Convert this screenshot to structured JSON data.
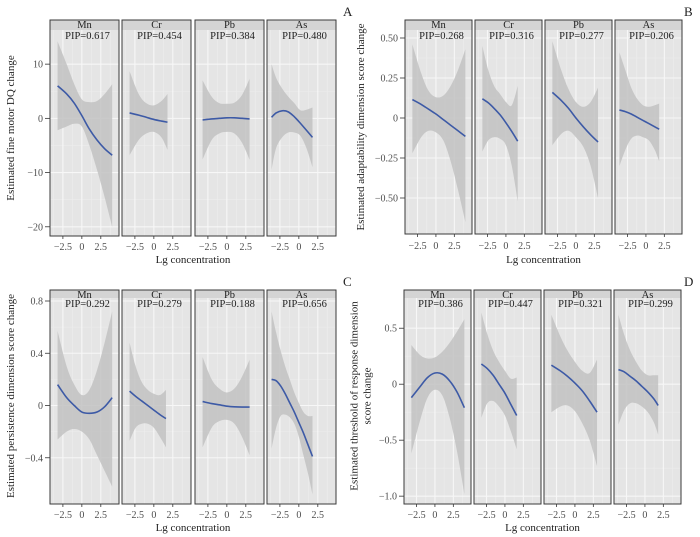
{
  "chart_data": [
    {
      "id": "A",
      "type": "line",
      "panel_label": "A",
      "ylabel": "Estimated fine motor DQ change",
      "ylabel_lines": [
        "Estimated fine motor DQ change"
      ],
      "xlabel": "Lg concentration",
      "ylim": [
        -21.7,
        16.3
      ],
      "yticks": [
        10,
        0,
        -10,
        -20
      ],
      "ytick_labels": [
        "10",
        "0",
        "−10",
        "−20"
      ],
      "xlim": [
        -4.2,
        4.9
      ],
      "xticks": [
        -2.5,
        0,
        2.5
      ],
      "xtick_labels": [
        "−2.5",
        "0",
        "2.5"
      ],
      "grid": true,
      "facets": [
        {
          "metal": "Mn",
          "pip": "PIP=0.617",
          "x": [
            -3.2,
            -2.0,
            -1.0,
            0.0,
            1.0,
            2.0,
            3.0,
            4.0
          ],
          "y": [
            6.0,
            4.5,
            2.8,
            0.5,
            -2.0,
            -4.0,
            -5.6,
            -6.8
          ],
          "lower": [
            -2.2,
            -1.5,
            -1.0,
            -1.5,
            -5.0,
            -9.5,
            -14.5,
            -20.0
          ],
          "upper": [
            14.2,
            10.0,
            6.3,
            3.5,
            3.0,
            3.2,
            4.5,
            6.3
          ]
        },
        {
          "metal": "Cr",
          "pip": "PIP=0.454",
          "x": [
            -3.2,
            -2.0,
            -1.0,
            0.0,
            1.0,
            1.8
          ],
          "y": [
            1.0,
            0.6,
            0.2,
            -0.2,
            -0.5,
            -0.7
          ],
          "lower": [
            -6.8,
            -4.0,
            -2.8,
            -2.5,
            -3.5,
            -5.8
          ],
          "upper": [
            8.7,
            4.5,
            2.8,
            2.4,
            3.2,
            4.5
          ]
        },
        {
          "metal": "Pb",
          "pip": "PIP=0.384",
          "x": [
            -3.2,
            -2.0,
            -1.0,
            0.0,
            1.0,
            2.0,
            3.0
          ],
          "y": [
            -0.3,
            -0.1,
            0.0,
            0.1,
            0.1,
            0.0,
            -0.1
          ],
          "lower": [
            -7.6,
            -4.0,
            -2.8,
            -2.5,
            -2.8,
            -4.5,
            -7.6
          ],
          "upper": [
            7.0,
            4.0,
            2.8,
            2.7,
            2.9,
            4.3,
            7.3
          ]
        },
        {
          "metal": "As",
          "pip": "PIP=0.480",
          "x": [
            -3.6,
            -3.0,
            -2.2,
            -1.4,
            -0.6,
            0.2,
            1.0,
            1.8
          ],
          "y": [
            0.2,
            1.0,
            1.4,
            1.2,
            0.3,
            -0.9,
            -2.2,
            -3.5
          ],
          "lower": [
            -9.5,
            -5.5,
            -3.5,
            -2.6,
            -2.6,
            -3.2,
            -5.5,
            -9.0
          ],
          "upper": [
            10.0,
            7.5,
            5.5,
            4.0,
            2.8,
            1.5,
            1.6,
            2.0
          ]
        }
      ]
    },
    {
      "id": "B",
      "type": "line",
      "panel_label": "B",
      "ylabel": "Estimated adaptability dimension score change",
      "ylabel_lines": [
        "Estimated adaptability dimension score change"
      ],
      "xlabel": "Lg concentration",
      "ylim": [
        -0.725,
        0.55
      ],
      "yticks": [
        0.5,
        0.25,
        0,
        -0.25,
        -0.5
      ],
      "ytick_labels": [
        "0.50",
        "0.25",
        "0",
        "−0.25",
        "−0.50"
      ],
      "xlim": [
        -4.2,
        4.9
      ],
      "xticks": [
        -2.5,
        0,
        2.5
      ],
      "xtick_labels": [
        "−2.5",
        "0",
        "2.5"
      ],
      "grid": true,
      "facets": [
        {
          "metal": "Mn",
          "pip": "PIP=0.268",
          "x": [
            -3.2,
            -2.0,
            -1.0,
            0.0,
            1.0,
            2.0,
            3.0,
            4.0
          ],
          "y": [
            0.115,
            0.085,
            0.055,
            0.025,
            -0.01,
            -0.045,
            -0.08,
            -0.115
          ],
          "lower": [
            -0.22,
            -0.12,
            -0.08,
            -0.09,
            -0.14,
            -0.27,
            -0.45,
            -0.65
          ],
          "upper": [
            0.46,
            0.28,
            0.17,
            0.13,
            0.14,
            0.2,
            0.3,
            0.43
          ]
        },
        {
          "metal": "Cr",
          "pip": "PIP=0.316",
          "x": [
            -3.2,
            -2.4,
            -1.6,
            -0.8,
            0.0,
            0.8,
            1.6
          ],
          "y": [
            0.12,
            0.095,
            0.06,
            0.02,
            -0.03,
            -0.085,
            -0.145
          ],
          "lower": [
            -0.21,
            -0.14,
            -0.12,
            -0.13,
            -0.17,
            -0.3,
            -0.52
          ],
          "upper": [
            0.45,
            0.3,
            0.2,
            0.15,
            0.1,
            0.08,
            0.2
          ]
        },
        {
          "metal": "Pb",
          "pip": "PIP=0.277",
          "x": [
            -3.2,
            -2.0,
            -1.0,
            0.0,
            1.0,
            2.0,
            3.0
          ],
          "y": [
            0.16,
            0.11,
            0.06,
            0.0,
            -0.055,
            -0.105,
            -0.15
          ],
          "lower": [
            -0.17,
            -0.1,
            -0.08,
            -0.12,
            -0.18,
            -0.3,
            -0.5
          ],
          "upper": [
            0.48,
            0.3,
            0.18,
            0.1,
            0.07,
            0.1,
            0.19
          ]
        },
        {
          "metal": "As",
          "pip": "PIP=0.206",
          "x": [
            -3.6,
            -2.8,
            -2.0,
            -1.2,
            -0.4,
            0.4,
            1.2,
            1.8
          ],
          "y": [
            0.05,
            0.04,
            0.025,
            0.005,
            -0.015,
            -0.035,
            -0.055,
            -0.07
          ],
          "lower": [
            -0.3,
            -0.2,
            -0.13,
            -0.11,
            -0.12,
            -0.14,
            -0.2,
            -0.27
          ],
          "upper": [
            0.41,
            0.3,
            0.19,
            0.12,
            0.08,
            0.07,
            0.08,
            0.09
          ]
        }
      ]
    },
    {
      "id": "C",
      "type": "line",
      "panel_label": "C",
      "ylabel": "Estimated persistence dimension score change",
      "ylabel_lines": [
        "Estimated persistence dimension score change"
      ],
      "xlabel": "Lg concentration",
      "ylim": [
        -0.754,
        0.823
      ],
      "yticks": [
        0.8,
        0.4,
        0,
        -0.4
      ],
      "ytick_labels": [
        "0.8",
        "0.4",
        "0",
        "−0.4"
      ],
      "xlim": [
        -4.2,
        4.9
      ],
      "xticks": [
        -2.5,
        0,
        2.5
      ],
      "xtick_labels": [
        "−2.5",
        "0",
        "2.5"
      ],
      "grid": true,
      "facets": [
        {
          "metal": "Mn",
          "pip": "PIP=0.292",
          "x": [
            -3.2,
            -2.0,
            -1.0,
            0.0,
            1.0,
            2.0,
            3.0,
            4.0
          ],
          "y": [
            0.16,
            0.06,
            0.0,
            -0.05,
            -0.06,
            -0.05,
            -0.01,
            0.06
          ],
          "lower": [
            -0.26,
            -0.2,
            -0.18,
            -0.2,
            -0.26,
            -0.38,
            -0.5,
            -0.62
          ],
          "upper": [
            0.57,
            0.3,
            0.16,
            0.08,
            0.12,
            0.27,
            0.48,
            0.72
          ]
        },
        {
          "metal": "Cr",
          "pip": "PIP=0.279",
          "x": [
            -3.2,
            -2.4,
            -1.6,
            -0.8,
            0.0,
            0.8,
            1.6
          ],
          "y": [
            0.11,
            0.07,
            0.035,
            0.0,
            -0.035,
            -0.07,
            -0.1
          ],
          "lower": [
            -0.27,
            -0.17,
            -0.14,
            -0.14,
            -0.17,
            -0.24,
            -0.32
          ],
          "upper": [
            0.48,
            0.3,
            0.18,
            0.12,
            0.09,
            0.08,
            0.12
          ]
        },
        {
          "metal": "Pb",
          "pip": "PIP=0.188",
          "x": [
            -3.2,
            -2.0,
            -1.0,
            0.0,
            1.0,
            2.0,
            3.0
          ],
          "y": [
            0.03,
            0.015,
            0.005,
            -0.005,
            -0.01,
            -0.012,
            -0.012
          ],
          "lower": [
            -0.32,
            -0.17,
            -0.12,
            -0.11,
            -0.14,
            -0.24,
            -0.38
          ],
          "upper": [
            0.37,
            0.2,
            0.13,
            0.1,
            0.13,
            0.22,
            0.35
          ]
        },
        {
          "metal": "As",
          "pip": "PIP=0.656",
          "x": [
            -3.6,
            -3.0,
            -2.4,
            -1.8,
            -1.2,
            -0.6,
            0.0,
            0.6,
            1.2,
            1.8
          ],
          "y": [
            0.2,
            0.19,
            0.15,
            0.09,
            0.02,
            -0.05,
            -0.13,
            -0.21,
            -0.3,
            -0.39
          ],
          "lower": [
            -0.33,
            -0.17,
            -0.08,
            -0.07,
            -0.09,
            -0.14,
            -0.24,
            -0.38,
            -0.52,
            -0.68
          ],
          "upper": [
            0.72,
            0.56,
            0.42,
            0.3,
            0.2,
            0.1,
            0.02,
            -0.05,
            -0.08,
            -0.08
          ]
        }
      ]
    },
    {
      "id": "D",
      "type": "line",
      "panel_label": "D",
      "ylabel": "Estimated threshold of response dimension score change",
      "ylabel_lines": [
        "Estimated threshold of response dimension",
        "score change"
      ],
      "xlabel": "Lg concentration",
      "ylim": [
        -1.07,
        0.77
      ],
      "yticks": [
        0.5,
        0,
        -0.5,
        -1.0
      ],
      "ytick_labels": [
        "0.5",
        "0",
        "−0.5",
        "−1.0"
      ],
      "xlim": [
        -4.2,
        4.9
      ],
      "xticks": [
        -2.5,
        0,
        2.5
      ],
      "xtick_labels": [
        "−2.5",
        "0",
        "2.5"
      ],
      "grid": true,
      "facets": [
        {
          "metal": "Mn",
          "pip": "PIP=0.386",
          "x": [
            -3.2,
            -2.0,
            -1.0,
            0.0,
            1.0,
            2.0,
            3.0,
            4.0
          ],
          "y": [
            -0.12,
            -0.02,
            0.06,
            0.1,
            0.09,
            0.03,
            -0.07,
            -0.21
          ],
          "lower": [
            -0.62,
            -0.32,
            -0.12,
            -0.05,
            -0.1,
            -0.3,
            -0.6,
            -0.98
          ],
          "upper": [
            0.35,
            0.26,
            0.23,
            0.24,
            0.29,
            0.37,
            0.47,
            0.58
          ]
        },
        {
          "metal": "Cr",
          "pip": "PIP=0.447",
          "x": [
            -3.2,
            -2.4,
            -1.6,
            -0.8,
            0.0,
            0.8,
            1.6
          ],
          "y": [
            0.18,
            0.14,
            0.08,
            0.0,
            -0.08,
            -0.18,
            -0.28
          ],
          "lower": [
            -0.3,
            -0.17,
            -0.15,
            -0.2,
            -0.28,
            -0.42,
            -0.58
          ],
          "upper": [
            0.64,
            0.45,
            0.3,
            0.2,
            0.12,
            0.05,
            0.06
          ]
        },
        {
          "metal": "Pb",
          "pip": "PIP=0.321",
          "x": [
            -3.2,
            -2.0,
            -1.0,
            0.0,
            1.0,
            2.0,
            3.0
          ],
          "y": [
            0.17,
            0.12,
            0.07,
            0.01,
            -0.06,
            -0.15,
            -0.25
          ],
          "lower": [
            -0.25,
            -0.2,
            -0.19,
            -0.24,
            -0.35,
            -0.5,
            -0.73
          ],
          "upper": [
            0.62,
            0.43,
            0.3,
            0.2,
            0.12,
            0.1,
            0.22
          ]
        },
        {
          "metal": "As",
          "pip": "PIP=0.299",
          "x": [
            -3.6,
            -2.8,
            -2.0,
            -1.2,
            -0.4,
            0.4,
            1.2,
            1.8
          ],
          "y": [
            0.13,
            0.11,
            0.07,
            0.03,
            -0.02,
            -0.07,
            -0.13,
            -0.19
          ],
          "lower": [
            -0.36,
            -0.23,
            -0.17,
            -0.17,
            -0.2,
            -0.25,
            -0.34,
            -0.45
          ],
          "upper": [
            0.62,
            0.44,
            0.3,
            0.2,
            0.12,
            0.08,
            0.08,
            0.08
          ]
        }
      ]
    }
  ],
  "colors": {
    "panel_bg": "#e5e5e5",
    "grid_major": "#f7f7f7",
    "grid_minor": "#ededed",
    "ribbon": "#c2c2c2",
    "line": "#3d5aa6",
    "strip_bg": "#d4d4d4",
    "border": "#3a3a3a"
  }
}
